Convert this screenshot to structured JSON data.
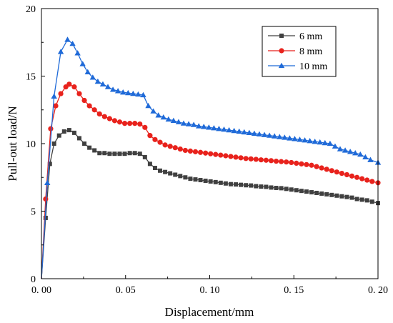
{
  "chart_data": {
    "type": "line",
    "title": "",
    "xlabel": "Displacement/mm",
    "ylabel": "Pull-out load/N",
    "xlim": [
      0,
      0.2
    ],
    "ylim": [
      0,
      20
    ],
    "xticks": [
      0.0,
      0.05,
      0.1,
      0.15,
      0.2
    ],
    "xtick_labels": [
      "0. 00",
      "0. 05",
      "0. 10",
      "0. 15",
      "0. 20"
    ],
    "yticks": [
      0,
      5,
      10,
      15,
      20
    ],
    "ytick_labels": [
      "0",
      "5",
      "10",
      "15",
      "20"
    ],
    "grid": false,
    "legend_position": "top-right",
    "series": [
      {
        "name": "6 mm",
        "color": "#404040",
        "marker": "square",
        "x": [
          0,
          0.0025,
          0.005,
          0.0075,
          0.0105,
          0.0135,
          0.0165,
          0.0195,
          0.0225,
          0.0255,
          0.0285,
          0.0315,
          0.0345,
          0.0375,
          0.0405,
          0.0435,
          0.0465,
          0.0495,
          0.0525,
          0.0555,
          0.0585,
          0.0615,
          0.0645,
          0.0675,
          0.0705,
          0.0735,
          0.0765,
          0.0795,
          0.0825,
          0.0855,
          0.0885,
          0.0915,
          0.0945,
          0.0975,
          0.1005,
          0.1035,
          0.1065,
          0.1095,
          0.1125,
          0.1155,
          0.1185,
          0.1215,
          0.1245,
          0.1275,
          0.1305,
          0.1335,
          0.1365,
          0.1395,
          0.1425,
          0.1455,
          0.1485,
          0.1515,
          0.1545,
          0.1575,
          0.1605,
          0.1635,
          0.1665,
          0.1695,
          0.1725,
          0.1755,
          0.1785,
          0.1815,
          0.1845,
          0.1875,
          0.1905,
          0.1935,
          0.1965,
          0.2
        ],
        "values": [
          0,
          4.5,
          8.5,
          10.0,
          10.6,
          10.9,
          11.0,
          10.8,
          10.4,
          10.0,
          9.7,
          9.5,
          9.3,
          9.3,
          9.25,
          9.25,
          9.25,
          9.25,
          9.3,
          9.3,
          9.25,
          9.0,
          8.5,
          8.2,
          8.0,
          7.9,
          7.8,
          7.7,
          7.6,
          7.5,
          7.4,
          7.35,
          7.3,
          7.25,
          7.2,
          7.15,
          7.1,
          7.05,
          7.0,
          6.98,
          6.95,
          6.92,
          6.9,
          6.85,
          6.82,
          6.8,
          6.75,
          6.72,
          6.7,
          6.65,
          6.6,
          6.55,
          6.5,
          6.45,
          6.4,
          6.35,
          6.3,
          6.25,
          6.2,
          6.15,
          6.1,
          6.05,
          6.0,
          5.9,
          5.85,
          5.8,
          5.7,
          5.6
        ]
      },
      {
        "name": "8 mm",
        "color": "#e8221c",
        "marker": "circle",
        "x": [
          0,
          0.0025,
          0.0055,
          0.0085,
          0.0115,
          0.0145,
          0.0165,
          0.0195,
          0.0225,
          0.0255,
          0.0285,
          0.0315,
          0.0345,
          0.0375,
          0.0405,
          0.0435,
          0.0465,
          0.0495,
          0.0525,
          0.0555,
          0.0585,
          0.0615,
          0.0645,
          0.0675,
          0.0705,
          0.0735,
          0.0765,
          0.0795,
          0.0825,
          0.0855,
          0.0885,
          0.0915,
          0.0945,
          0.0975,
          0.1005,
          0.1035,
          0.1065,
          0.1095,
          0.1125,
          0.1155,
          0.1185,
          0.1215,
          0.1245,
          0.1275,
          0.1305,
          0.1335,
          0.1365,
          0.1395,
          0.1425,
          0.1455,
          0.1485,
          0.1515,
          0.1545,
          0.1575,
          0.1605,
          0.1635,
          0.1665,
          0.1695,
          0.1725,
          0.1755,
          0.1785,
          0.1815,
          0.1845,
          0.1875,
          0.1905,
          0.1935,
          0.1965,
          0.2
        ],
        "values": [
          0,
          5.9,
          11.1,
          12.8,
          13.7,
          14.2,
          14.4,
          14.2,
          13.7,
          13.2,
          12.8,
          12.5,
          12.2,
          12.0,
          11.85,
          11.7,
          11.6,
          11.5,
          11.5,
          11.5,
          11.45,
          11.2,
          10.6,
          10.3,
          10.1,
          9.9,
          9.8,
          9.7,
          9.6,
          9.5,
          9.45,
          9.4,
          9.35,
          9.3,
          9.25,
          9.2,
          9.15,
          9.1,
          9.05,
          9.0,
          8.95,
          8.9,
          8.87,
          8.84,
          8.8,
          8.77,
          8.74,
          8.7,
          8.67,
          8.64,
          8.6,
          8.55,
          8.5,
          8.45,
          8.4,
          8.3,
          8.2,
          8.1,
          8.0,
          7.9,
          7.8,
          7.7,
          7.6,
          7.5,
          7.4,
          7.3,
          7.2,
          7.1
        ]
      },
      {
        "name": "10 mm",
        "color": "#1f6ad8",
        "marker": "triangle",
        "x": [
          0,
          0.0035,
          0.0075,
          0.0115,
          0.0155,
          0.0185,
          0.0215,
          0.0245,
          0.0275,
          0.0305,
          0.0335,
          0.0365,
          0.0395,
          0.0425,
          0.0455,
          0.0485,
          0.0515,
          0.0545,
          0.0575,
          0.0605,
          0.0635,
          0.0665,
          0.0695,
          0.0725,
          0.0755,
          0.0785,
          0.0815,
          0.0845,
          0.0875,
          0.0905,
          0.0935,
          0.0965,
          0.0995,
          0.1025,
          0.1055,
          0.1085,
          0.1115,
          0.1145,
          0.1175,
          0.1205,
          0.1235,
          0.1265,
          0.1295,
          0.1325,
          0.1355,
          0.1385,
          0.1415,
          0.1445,
          0.1475,
          0.1505,
          0.1535,
          0.1565,
          0.1595,
          0.1625,
          0.1655,
          0.1685,
          0.1715,
          0.1745,
          0.1775,
          0.1805,
          0.1835,
          0.1865,
          0.1895,
          0.1925,
          0.1955,
          0.2
        ],
        "values": [
          0,
          7.1,
          13.5,
          16.8,
          17.7,
          17.4,
          16.7,
          15.9,
          15.3,
          14.9,
          14.6,
          14.4,
          14.2,
          14.0,
          13.9,
          13.8,
          13.75,
          13.7,
          13.65,
          13.6,
          12.8,
          12.4,
          12.1,
          11.95,
          11.8,
          11.7,
          11.6,
          11.5,
          11.45,
          11.4,
          11.3,
          11.25,
          11.2,
          11.15,
          11.1,
          11.05,
          11.0,
          10.95,
          10.9,
          10.85,
          10.8,
          10.75,
          10.7,
          10.65,
          10.6,
          10.55,
          10.5,
          10.45,
          10.4,
          10.35,
          10.3,
          10.25,
          10.2,
          10.15,
          10.1,
          10.05,
          10.0,
          9.8,
          9.6,
          9.5,
          9.4,
          9.3,
          9.2,
          9.0,
          8.8,
          8.6
        ]
      }
    ]
  }
}
